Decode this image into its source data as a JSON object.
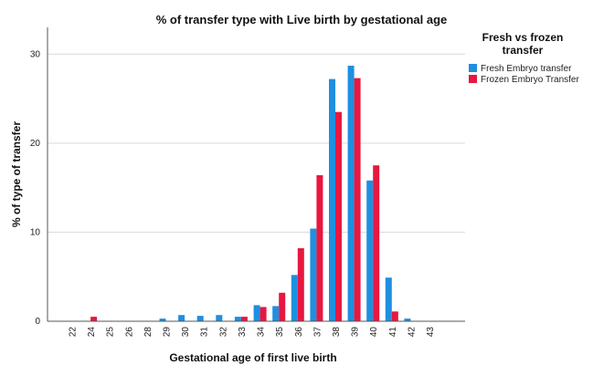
{
  "chart_data": {
    "type": "bar",
    "title": "% of transfer type with Live birth by gestational age",
    "xlabel": "Gestational age of first live birth",
    "ylabel": "% of type of transfer",
    "ylim": [
      0,
      33
    ],
    "yticks": [
      0,
      10,
      20,
      30
    ],
    "grid": true,
    "legend": {
      "title_lines": [
        "Fresh vs frozen",
        "transfer"
      ],
      "placement": "top-right"
    },
    "categories": [
      "22",
      "24",
      "25",
      "26",
      "28",
      "29",
      "30",
      "31",
      "32",
      "33",
      "34",
      "35",
      "36",
      "37",
      "38",
      "39",
      "40",
      "41",
      "42",
      "43"
    ],
    "series": [
      {
        "name": "Fresh Embryo transfer",
        "color": "#1f8fe0",
        "values": [
          0.05,
          0.05,
          0.05,
          0.05,
          0.05,
          0.3,
          0.7,
          0.6,
          0.7,
          0.5,
          1.8,
          1.7,
          5.2,
          10.4,
          27.2,
          28.7,
          15.8,
          4.9,
          0.3,
          0.05
        ]
      },
      {
        "name": "Frozen Embryo Transfer",
        "color": "#e8173f",
        "values": [
          0.05,
          0.5,
          0.05,
          0.05,
          0.05,
          0.05,
          0.05,
          0.05,
          0.05,
          0.5,
          1.6,
          3.2,
          8.2,
          16.4,
          23.5,
          27.3,
          17.5,
          1.1,
          0.05,
          0.05
        ]
      }
    ]
  }
}
